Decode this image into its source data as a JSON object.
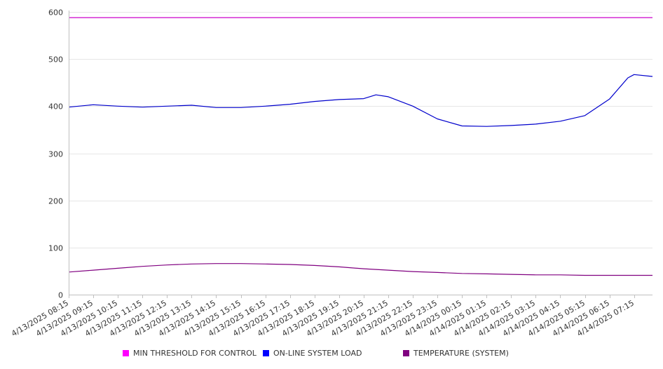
{
  "chart_data": {
    "type": "line",
    "title": "",
    "xlabel": "",
    "ylabel": "",
    "ylim": [
      0,
      600
    ],
    "yticks": [
      0,
      100,
      200,
      300,
      400,
      500,
      600
    ],
    "grid": true,
    "legend_position": "bottom",
    "x_tick_labels": [
      "4/13/2025 08:15",
      "4/13/2025 09:15",
      "4/13/2025 10:15",
      "4/13/2025 11:15",
      "4/13/2025 12:15",
      "4/13/2025 13:15",
      "4/13/2025 14:15",
      "4/13/2025 15:15",
      "4/13/2025 16:15",
      "4/13/2025 17:15",
      "4/13/2025 18:15",
      "4/13/2025 19:15",
      "4/13/2025 20:15",
      "4/13/2025 21:15",
      "4/13/2025 22:15",
      "4/13/2025 23:15",
      "4/14/2025 00:15",
      "4/14/2025 01:15",
      "4/14/2025 02:15",
      "4/14/2025 03:15",
      "4/14/2025 04:15",
      "4/14/2025 05:15",
      "4/14/2025 06:15",
      "4/14/2025 07:15"
    ],
    "x_end": "4/14/2025 08:00",
    "series": [
      {
        "name": "MIN THRESHOLD FOR CONTROL",
        "color": "#cc00cc",
        "x": [
          "4/13/2025 08:15",
          "4/14/2025 08:00"
        ],
        "y": [
          588,
          588
        ]
      },
      {
        "name": "ON-LINE SYSTEM LOAD",
        "color": "#0000cc",
        "x": [
          "4/13/2025 08:15",
          "4/13/2025 09:15",
          "4/13/2025 10:15",
          "4/13/2025 11:15",
          "4/13/2025 12:15",
          "4/13/2025 13:15",
          "4/13/2025 14:15",
          "4/13/2025 15:15",
          "4/13/2025 16:15",
          "4/13/2025 17:15",
          "4/13/2025 18:15",
          "4/13/2025 19:15",
          "4/13/2025 20:15",
          "4/13/2025 20:45",
          "4/13/2025 21:15",
          "4/13/2025 22:15",
          "4/13/2025 23:15",
          "4/14/2025 00:15",
          "4/14/2025 01:15",
          "4/14/2025 02:15",
          "4/14/2025 03:15",
          "4/14/2025 04:15",
          "4/14/2025 05:15",
          "4/14/2025 06:15",
          "4/14/2025 07:00",
          "4/14/2025 07:15",
          "4/14/2025 08:00"
        ],
        "y": [
          398,
          403,
          400,
          398,
          400,
          402,
          397,
          397,
          400,
          404,
          410,
          414,
          416,
          424,
          420,
          400,
          373,
          358,
          357,
          359,
          362,
          368,
          380,
          415,
          460,
          467,
          463
        ]
      },
      {
        "name": "TEMPERATURE (SYSTEM)",
        "color": "#800080",
        "x": [
          "4/13/2025 08:15",
          "4/13/2025 09:15",
          "4/13/2025 10:15",
          "4/13/2025 11:15",
          "4/13/2025 12:15",
          "4/13/2025 13:15",
          "4/13/2025 14:15",
          "4/13/2025 15:15",
          "4/13/2025 16:15",
          "4/13/2025 17:15",
          "4/13/2025 18:15",
          "4/13/2025 19:15",
          "4/13/2025 20:15",
          "4/13/2025 21:15",
          "4/13/2025 22:15",
          "4/13/2025 23:15",
          "4/14/2025 00:15",
          "4/14/2025 01:15",
          "4/14/2025 02:15",
          "4/14/2025 03:15",
          "4/14/2025 04:15",
          "4/14/2025 05:15",
          "4/14/2025 06:15",
          "4/14/2025 07:15",
          "4/14/2025 08:00"
        ],
        "y": [
          48,
          52,
          56,
          60,
          63,
          65,
          66,
          66,
          65,
          64,
          62,
          59,
          55,
          52,
          49,
          47,
          45,
          44,
          43,
          42,
          42,
          41,
          41,
          41,
          41
        ]
      }
    ]
  }
}
